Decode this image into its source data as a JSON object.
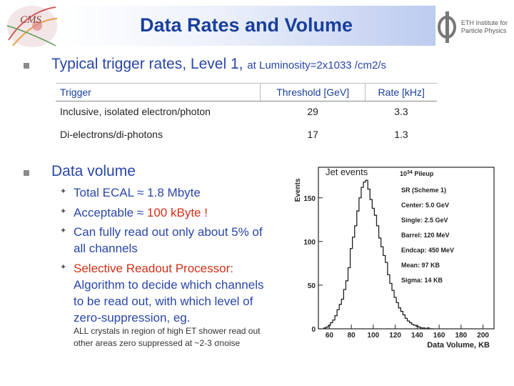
{
  "slide": {
    "title": "Data Rates and Volume",
    "eth_logo_text": "ETH Institute for\nParticle Physics",
    "section1": {
      "heading": "Typical trigger rates, Level 1, ",
      "heading_small": "at Luminosity=2x1033 /cm2/s"
    },
    "table": {
      "headers": [
        "Trigger",
        "Threshold [GeV]",
        "Rate [kHz]"
      ],
      "rows": [
        [
          "Inclusive, isolated electron/photon",
          "29",
          "3.3"
        ],
        [
          "Di-electrons/di-photons",
          "17",
          "1.3"
        ]
      ]
    },
    "section2": {
      "heading": "Data volume",
      "items": [
        {
          "text": "Total ECAL ≈ 1.8 Mbyte"
        },
        {
          "text_before": "Acceptable ≈ ",
          "text_red": "100 kByte !"
        },
        {
          "line1": "Can fully read out only about 5% of",
          "line2": "all channels"
        },
        {
          "line1_red": "Selective Readout Processor:",
          "line2": "Algorithm to decide which channels",
          "line3": "to be read out, with which level of",
          "line4": "zero-suppression, eg."
        }
      ],
      "note_line1": "ALL crystals in region of high ET shower read out",
      "note_line2": "other areas zero suppressed at ~2-3 σnoise"
    }
  },
  "chart_data": {
    "type": "histogram",
    "title": "Jet events",
    "ylabel": "Events",
    "xlabel": "Data Volume, KB",
    "xlim": [
      50,
      210
    ],
    "ylim": [
      0,
      185
    ],
    "xticks": [
      60,
      80,
      100,
      120,
      140,
      160,
      180,
      200
    ],
    "yticks": [
      0,
      50,
      100,
      150
    ],
    "legend_lines": [
      "10^34 Pileup",
      "SR (Scheme 1)",
      "Center: 5.0 GeV",
      "Single: 2.5 GeV",
      "Barrel: 120 MeV",
      "Endcap: 450 MeV",
      "Mean: 97 KB",
      "Sigma: 14 KB"
    ],
    "bin_start": 55,
    "bin_width": 2,
    "values": [
      1,
      2,
      4,
      7,
      10,
      15,
      22,
      28,
      34,
      45,
      55,
      70,
      92,
      105,
      118,
      135,
      150,
      162,
      168,
      170,
      160,
      148,
      138,
      130,
      118,
      104,
      94,
      84,
      76,
      62,
      52,
      44,
      36,
      30,
      24,
      20,
      16,
      12,
      9,
      7,
      5,
      4,
      3,
      2,
      1,
      1,
      0,
      1,
      0,
      0
    ]
  }
}
